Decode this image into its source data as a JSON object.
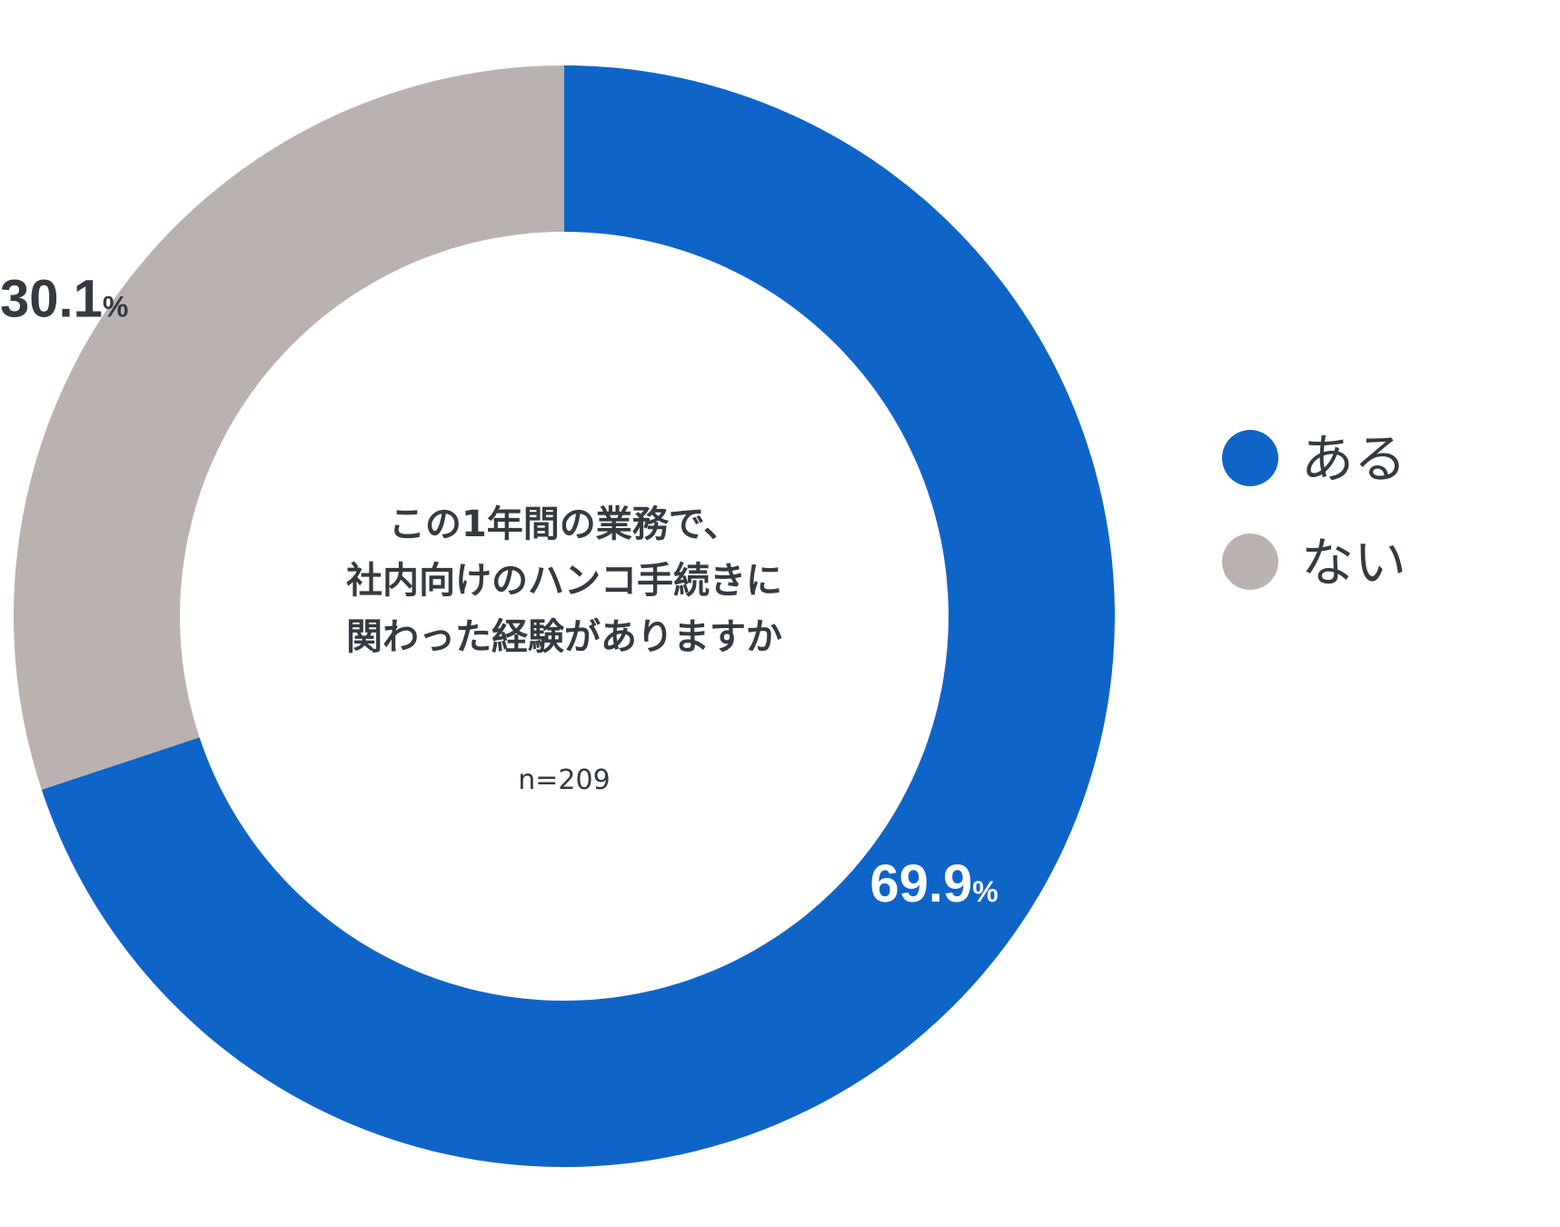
{
  "chart_data": {
    "type": "pie",
    "center_text": {
      "title_lines": [
        "この1年間の業務で、",
        "社内向けのハンコ手続きに",
        "関わった経験がありますか"
      ],
      "sample": "n=209"
    },
    "categories": [
      "ある",
      "ない"
    ],
    "values": [
      69.9,
      30.1
    ],
    "value_labels": [
      "69.9",
      "30.1"
    ],
    "unit": "%",
    "colors": [
      "#0f64c8",
      "#bab2b1"
    ],
    "label_colors": [
      "#ffffff",
      "#333a40"
    ],
    "legend": {
      "placement": "right"
    }
  }
}
